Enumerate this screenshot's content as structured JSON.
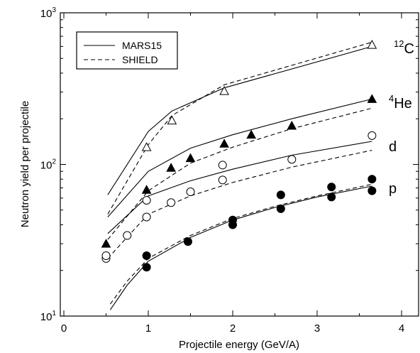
{
  "chart_data": {
    "type": "line",
    "xlabel": "Projectile energy (GeV/A)",
    "ylabel": "Neutron yield per projectile",
    "xlim": [
      0,
      4.3
    ],
    "ylim": [
      10,
      1000
    ],
    "y_scale": "log",
    "x_ticks": [
      0,
      1,
      2,
      3,
      4
    ],
    "x_tick_labels": [
      "0",
      "1",
      "2",
      "3",
      "4"
    ],
    "y_ticks": [
      10,
      100,
      1000
    ],
    "y_tick_labels": [
      {
        "base": "10",
        "exp": "1"
      },
      {
        "base": "10",
        "exp": "2"
      },
      {
        "base": "10",
        "exp": "3"
      }
    ],
    "legend": {
      "position": "top-left",
      "entries": [
        {
          "label": "MARS15",
          "style": "solid"
        },
        {
          "label": "SHIELD",
          "style": "dashed"
        }
      ]
    },
    "particle_labels": [
      {
        "text": "C",
        "sup": "12",
        "series": "12C"
      },
      {
        "text": "He",
        "sup": "4",
        "series": "4He"
      },
      {
        "text": "d",
        "sup": "",
        "series": "d"
      },
      {
        "text": "p",
        "sup": "",
        "series": "p"
      }
    ],
    "series": [
      {
        "id": "12C",
        "marker": "open-triangle",
        "mars15": {
          "x": [
            0.52,
            1.0,
            1.28,
            1.9,
            3.65
          ],
          "y": [
            63,
            165,
            225,
            320,
            600
          ]
        },
        "shield": {
          "x": [
            0.52,
            1.0,
            1.28,
            1.9,
            3.65
          ],
          "y": [
            47,
            135,
            210,
            335,
            640
          ]
        },
        "data": {
          "x": [
            0.98,
            1.28,
            1.9,
            3.65
          ],
          "y": [
            130,
            195,
            305,
            615
          ]
        }
      },
      {
        "id": "4He",
        "marker": "filled-triangle",
        "mars15": {
          "x": [
            0.52,
            1.0,
            1.5,
            2.0,
            2.7,
            3.65
          ],
          "y": [
            45,
            90,
            128,
            157,
            200,
            270
          ]
        },
        "shield": {
          "x": [
            0.52,
            1.0,
            1.5,
            2.0,
            2.7,
            3.65
          ],
          "y": [
            32,
            67,
            102,
            130,
            172,
            235
          ]
        },
        "data": {
          "x": [
            0.5,
            0.98,
            1.27,
            1.5,
            1.9,
            2.22,
            2.7,
            3.65
          ],
          "y": [
            30,
            68,
            95,
            110,
            137,
            157,
            180,
            270
          ]
        }
      },
      {
        "id": "d",
        "marker": "open-circle",
        "mars15": {
          "x": [
            0.52,
            1.0,
            1.5,
            2.0,
            2.7,
            3.65
          ],
          "y": [
            35,
            62,
            78,
            93,
            115,
            142
          ]
        },
        "shield": {
          "x": [
            0.52,
            1.0,
            1.5,
            2.0,
            2.7,
            3.65
          ],
          "y": [
            24,
            47,
            62,
            76,
            96,
            124
          ]
        },
        "data": {
          "x": [
            0.5,
            0.5,
            0.75,
            0.98,
            0.98,
            1.27,
            1.5,
            1.88,
            1.88,
            2.7,
            3.65
          ],
          "y": [
            24,
            25,
            34,
            45,
            58,
            56,
            66,
            79,
            99,
            108,
            155
          ]
        }
      },
      {
        "id": "p",
        "marker": "filled-circle",
        "mars15": {
          "x": [
            0.55,
            0.75,
            1.0,
            1.5,
            2.0,
            2.5,
            3.0,
            3.65
          ],
          "y": [
            11,
            16,
            23,
            33,
            43,
            52,
            61,
            72
          ]
        },
        "shield": {
          "x": [
            0.55,
            0.75,
            1.0,
            1.5,
            2.0,
            2.5,
            3.0,
            3.65
          ],
          "y": [
            12,
            17,
            24,
            34,
            44,
            53,
            62,
            74
          ]
        },
        "data": {
          "x": [
            0.98,
            0.98,
            1.47,
            2.0,
            2.0,
            2.57,
            2.57,
            3.17,
            3.17,
            3.65,
            3.65
          ],
          "y": [
            21,
            25,
            31,
            40,
            43,
            51,
            63,
            61,
            71,
            67,
            80
          ]
        }
      }
    ]
  }
}
